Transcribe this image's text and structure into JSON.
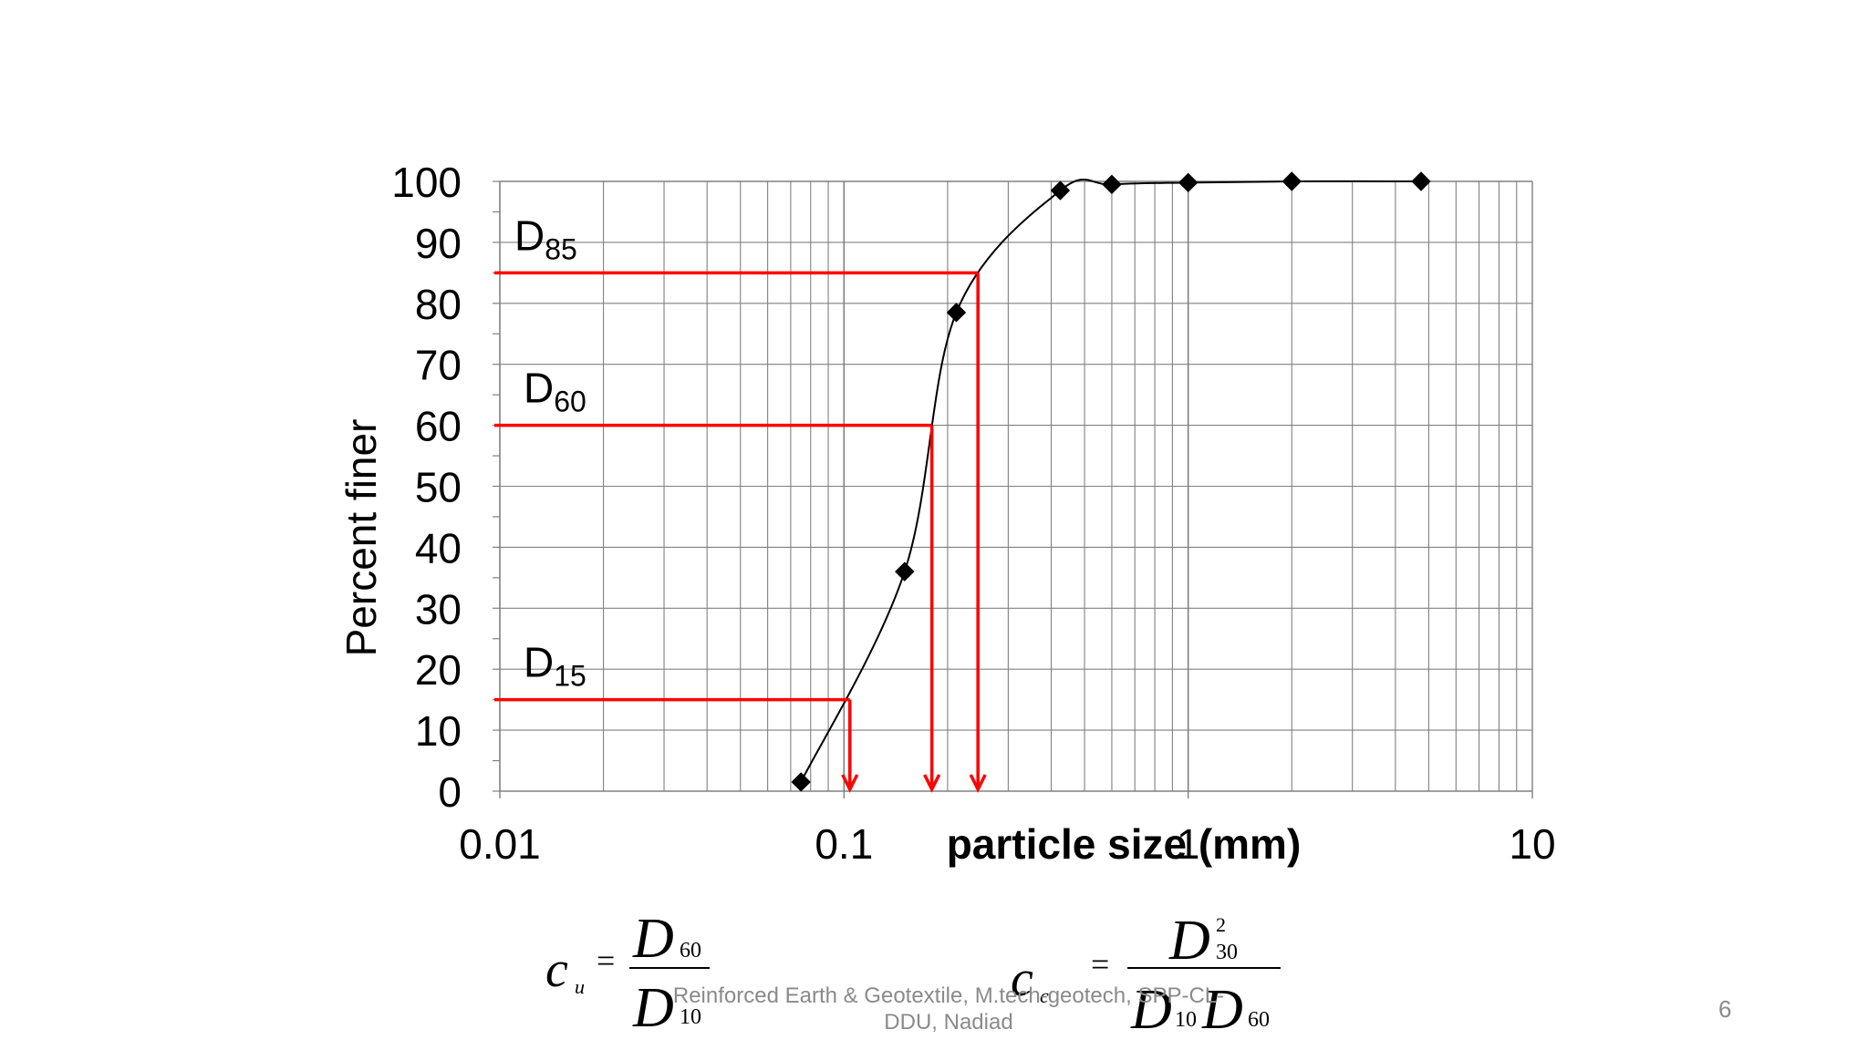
{
  "chart_data": {
    "type": "scatter",
    "title": "",
    "xlabel": "particle size (mm)",
    "ylabel": "Percent finer",
    "x_scale": "log",
    "xlim": [
      0.01,
      10
    ],
    "ylim": [
      0,
      100
    ],
    "x_ticks": [
      "0.01",
      "0.1",
      "1",
      "10"
    ],
    "y_ticks": [
      "0",
      "10",
      "20",
      "30",
      "40",
      "50",
      "60",
      "70",
      "80",
      "90",
      "100"
    ],
    "grid": true,
    "legend": "none",
    "series": [
      {
        "x": [
          0.075,
          0.15,
          0.212,
          0.425,
          0.6,
          1.0,
          2.0,
          4.75
        ],
        "y": [
          1.5,
          36,
          78.5,
          98.5,
          99.5,
          99.8,
          100,
          100
        ],
        "marker": "diamond",
        "color": "#000000"
      }
    ],
    "annotations": [
      {
        "label": "D",
        "sub": "85",
        "percent": 85,
        "size_mm": 0.245
      },
      {
        "label": "D",
        "sub": "60",
        "percent": 60,
        "size_mm": 0.18
      },
      {
        "label": "D",
        "sub": "15",
        "percent": 15,
        "size_mm": 0.104
      }
    ],
    "annotation_color": "#ff0000"
  },
  "formulas": {
    "cu": {
      "lhs": "c",
      "lhs_sub": "u",
      "eq": "=",
      "num": "D",
      "num_sub": "60",
      "den": "D",
      "den_sub": "10"
    },
    "cc": {
      "lhs": "c",
      "lhs_sub": "c",
      "eq": "=",
      "num": "D",
      "num_sup": "2",
      "num_sub": "30",
      "den1": "D",
      "den1_sub": "10",
      "den2": "D",
      "den2_sub": "60"
    }
  },
  "footer": {
    "line1": "Reinforced Earth & Geotextile, M.tech-geotech, SPP-CL-",
    "line2": "DDU, Nadiad"
  },
  "page_number": "6"
}
